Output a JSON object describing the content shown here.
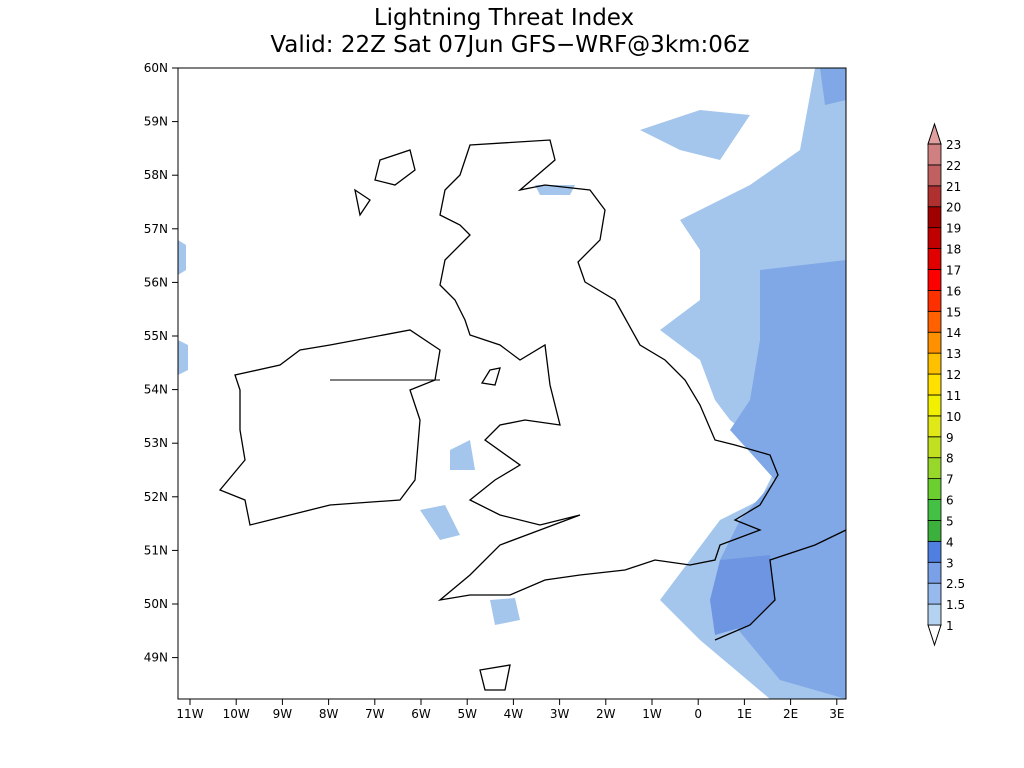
{
  "title": [
    "Lightning Threat Index",
    "Valid: 22Z Sat 07Jun GFS−WRF@3km:06z"
  ],
  "lat_labels": [
    "60N",
    "59N",
    "58N",
    "57N",
    "56N",
    "55N",
    "54N",
    "53N",
    "52N",
    "51N",
    "50N",
    "49N"
  ],
  "lon_labels": [
    "11W",
    "10W",
    "9W",
    "8W",
    "7W",
    "6W",
    "5W",
    "4W",
    "3W",
    "2W",
    "1W",
    "0",
    "1E",
    "2E",
    "3E"
  ],
  "colorbar": {
    "labels": [
      1,
      1.5,
      2.5,
      3,
      4,
      5,
      6,
      7,
      8,
      9,
      10,
      11,
      12,
      13,
      14,
      15,
      16,
      17,
      18,
      19,
      20,
      21,
      22,
      23
    ],
    "colors": [
      "#b4d3f0",
      "#96b9ee",
      "#7aa0e8",
      "#4f7fe0",
      "#3cb03c",
      "#44c044",
      "#6ccf30",
      "#98d82a",
      "#c0e020",
      "#e0e818",
      "#f0f000",
      "#ffe000",
      "#ffc000",
      "#ff9000",
      "#ff6000",
      "#ff3000",
      "#ff0000",
      "#e00000",
      "#c00000",
      "#a00000",
      "#b03030",
      "#c06060",
      "#d08080",
      "#e0a0a0"
    ],
    "under_color": "#ffffff"
  }
}
